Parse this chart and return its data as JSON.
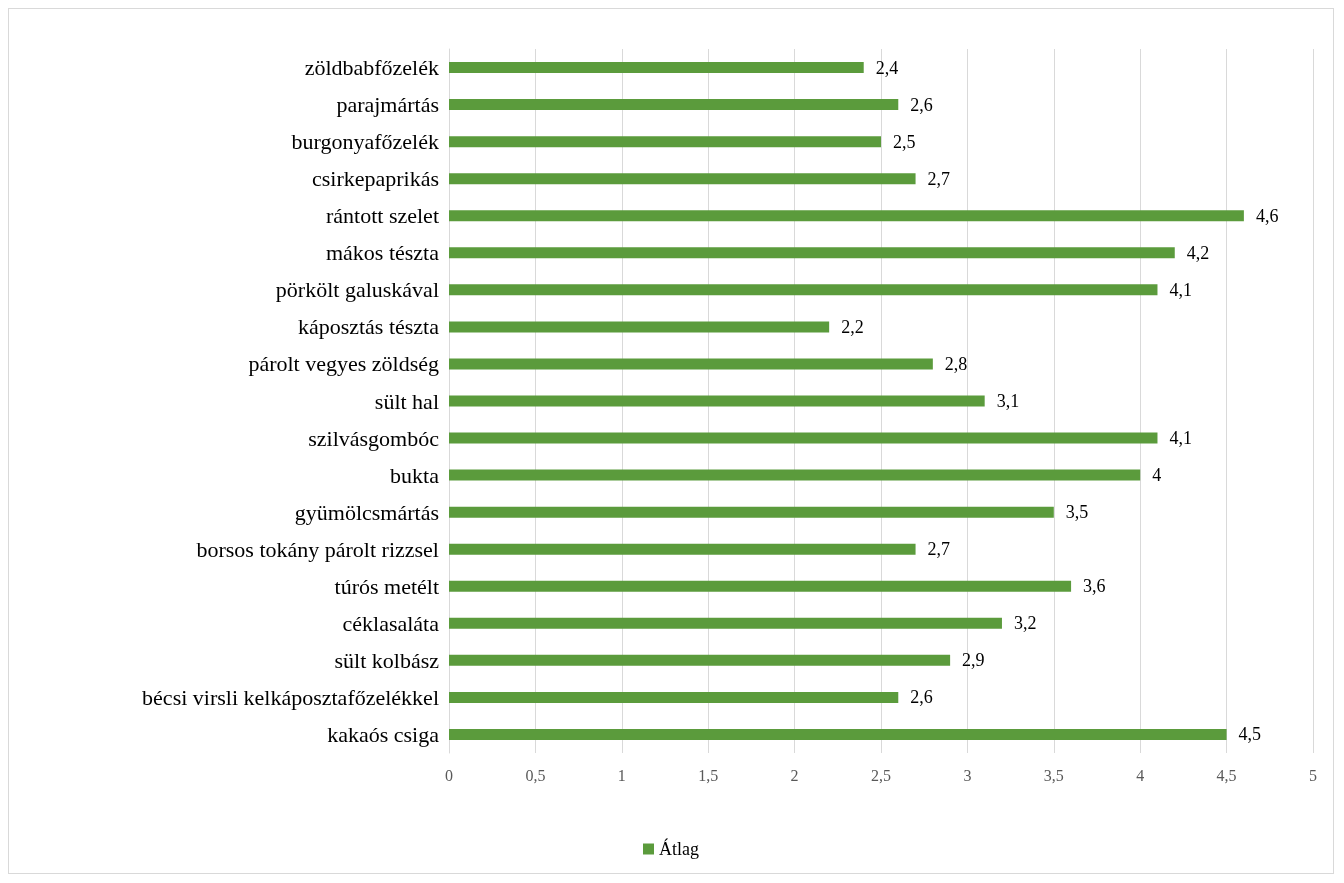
{
  "chart_data": {
    "type": "bar",
    "orientation": "horizontal",
    "categories": [
      "zöldbabfőzelék",
      "parajmártás",
      "burgonyafőzelék",
      "csirkepaprikás",
      "rántott szelet",
      "mákos tészta",
      "pörkölt galuskával",
      "káposztás tészta",
      "párolt vegyes zöldség",
      "sült hal",
      "szilvásgombóc",
      "bukta",
      "gyümölcsmártás",
      "borsos tokány párolt rizzsel",
      "túrós metélt",
      "céklasaláta",
      "sült kolbász",
      "bécsi virsli kelkáposztafőzelékkel",
      "kakaós csiga"
    ],
    "series": [
      {
        "name": "Átlag",
        "color": "#5b9b3c",
        "values": [
          2.4,
          2.6,
          2.5,
          2.7,
          4.6,
          4.2,
          4.1,
          2.2,
          2.8,
          3.1,
          4.1,
          4,
          3.5,
          2.7,
          3.6,
          3.2,
          2.9,
          2.6,
          4.5
        ],
        "value_labels": [
          "2,4",
          "2,6",
          "2,5",
          "2,7",
          "4,6",
          "4,2",
          "4,1",
          "2,2",
          "2,8",
          "3,1",
          "4,1",
          "4",
          "3,5",
          "2,7",
          "3,6",
          "3,2",
          "2,9",
          "2,6",
          "4,5"
        ]
      }
    ],
    "xlim": [
      0,
      5
    ],
    "xticks": [
      0,
      {
        "value": 0.5,
        "label": "0,5"
      },
      1,
      {
        "value": 1.5,
        "label": "1,5"
      },
      2,
      {
        "value": 2.5,
        "label": "2,5"
      },
      3,
      {
        "value": 3.5,
        "label": "3,5"
      },
      4,
      {
        "value": 4.5,
        "label": "4,5"
      },
      5
    ],
    "grid": "x",
    "legend": "bottom"
  }
}
